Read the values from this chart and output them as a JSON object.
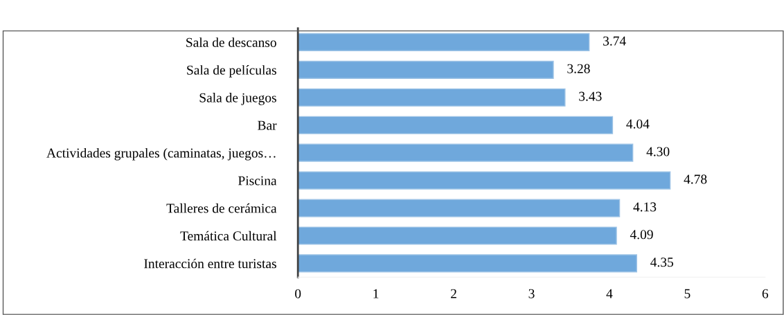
{
  "chart_data": {
    "type": "bar",
    "orientation": "horizontal",
    "categories": [
      "Sala de descanso",
      "Sala de películas",
      "Sala de juegos",
      "Bar",
      "Actividades grupales (caminatas, juegos…",
      "Piscina",
      "Talleres de cerámica",
      "Temática Cultural",
      "Interacción entre turistas"
    ],
    "values": [
      3.74,
      3.28,
      3.43,
      4.04,
      4.3,
      4.78,
      4.13,
      4.09,
      4.35
    ],
    "value_labels": [
      "3.74",
      "3.28",
      "3.43",
      "4.04",
      "4.30",
      "4.78",
      "4.13",
      "4.09",
      "4.35"
    ],
    "color": "#6fa8dc",
    "xlim": [
      0,
      6
    ],
    "xticks": [
      0,
      1,
      2,
      3,
      4,
      5,
      6
    ],
    "grid": false
  }
}
